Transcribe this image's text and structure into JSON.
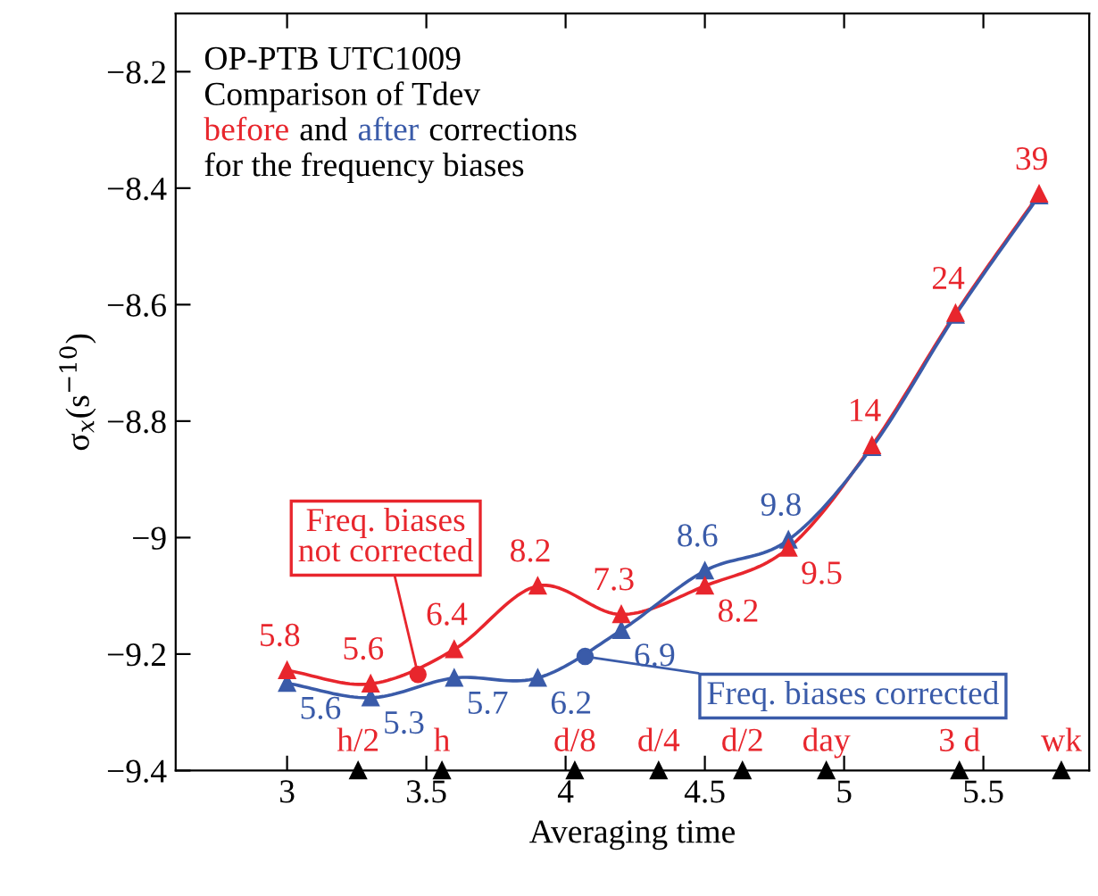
{
  "chart_data": {
    "type": "line",
    "title": "OP-PTB UTC1009",
    "subtitle": "Comparison of Tdev\nbefore and after corrections\nfor the frequency biases",
    "xlabel": "Averaging time",
    "ylabel": "σ$_{x}$(s$^{−10}$)",
    "x": [
      3,
      3.3,
      3.6,
      3.9,
      4.2,
      4.5,
      4.8,
      5.1,
      5.4,
      5.7
    ],
    "xlim": [
      2.6,
      5.88
    ],
    "ylim": [
      -9.4,
      -8.1
    ],
    "xticks": [
      3,
      3.5,
      4,
      4.5,
      5,
      5.5
    ],
    "yticks": [
      -9.4,
      -9.2,
      -9,
      -8.8,
      -8.6,
      -8.4,
      -8.2
    ],
    "marker": "triangle",
    "line_style": "solid",
    "grid": false,
    "legend": false,
    "series": [
      {
        "color": "#e8262d",
        "values": [
          -9.228,
          -9.251,
          -9.192,
          -9.083,
          -9.132,
          -9.083,
          -9.018,
          -8.842,
          -8.615,
          -8.41
        ]
      },
      {
        "color": "#3a5ba9",
        "values": [
          -9.25,
          -9.275,
          -9.241,
          -9.241,
          -9.159,
          -9.057,
          -9.004,
          -8.845,
          -8.618,
          -8.413
        ]
      },
      {
        "type": "scatter",
        "marker": "circle",
        "color": "#e8262d",
        "x": [
          3.47
        ],
        "values": [
          -9.235
        ]
      },
      {
        "type": "scatter",
        "marker": "circle",
        "color": "#3a5ba9",
        "x": [
          4.07
        ],
        "values": [
          -9.204
        ]
      },
      {
        "type": "scatter",
        "marker": "triangle",
        "color": "#000000",
        "x": [
          3.255,
          3.556,
          4.033,
          4.334,
          4.635,
          4.936,
          5.414,
          5.78
        ],
        "values": [
          -9.4,
          -9.4,
          -9.4,
          -9.4,
          -9.4,
          -9.4,
          -9.4,
          -9.4
        ]
      }
    ],
    "annotations": [
      {
        "text": "5.8",
        "x": 3,
        "y": -9.228
      },
      {
        "text": "5.6",
        "x": 3.3,
        "y": -9.251
      },
      {
        "text": "6.4",
        "x": 3.6,
        "y": -9.192
      },
      {
        "text": "8.2",
        "x": 3.9,
        "y": -9.083
      },
      {
        "text": "7.3",
        "x": 4.2,
        "y": -9.132
      },
      {
        "text": "8.2",
        "x": 4.5,
        "y": -9.083
      },
      {
        "text": "9.5",
        "x": 4.8,
        "y": -9.018
      },
      {
        "text": "14",
        "x": 5.1,
        "y": -8.842
      },
      {
        "text": "24",
        "x": 5.4,
        "y": -8.615
      },
      {
        "text": "39",
        "x": 5.7,
        "y": -8.41
      },
      {
        "text": "5.6",
        "x": 3,
        "y": -9.25
      },
      {
        "text": "5.3",
        "x": 3.3,
        "y": -9.275
      },
      {
        "text": "5.7",
        "x": 3.6,
        "y": -9.241
      },
      {
        "text": "6.2",
        "x": 3.9,
        "y": -9.241
      },
      {
        "text": "6.9",
        "x": 4.2,
        "y": -9.159
      },
      {
        "text": "8.6",
        "x": 4.5,
        "y": -9.057
      },
      {
        "text": "9.8",
        "x": 4.8,
        "y": -9.004
      },
      {
        "text": "Freq. biases\nnot corrected",
        "x": 3.47,
        "y": -9.235
      },
      {
        "text": "Freq. biases corrected",
        "x": 4.07,
        "y": -9.204
      },
      {
        "text": "h/2",
        "x": 3.255,
        "y": -9.4
      },
      {
        "text": "h",
        "x": 3.556,
        "y": -9.4
      },
      {
        "text": "d/8",
        "x": 4.033,
        "y": -9.4
      },
      {
        "text": "d/4",
        "x": 4.334,
        "y": -9.4
      },
      {
        "text": "d/2",
        "x": 4.635,
        "y": -9.4
      },
      {
        "text": "day",
        "x": 4.936,
        "y": -9.4
      },
      {
        "text": "3 d",
        "x": 5.414,
        "y": -9.4
      },
      {
        "text": "wk",
        "x": 5.78,
        "y": -9.4
      }
    ]
  }
}
